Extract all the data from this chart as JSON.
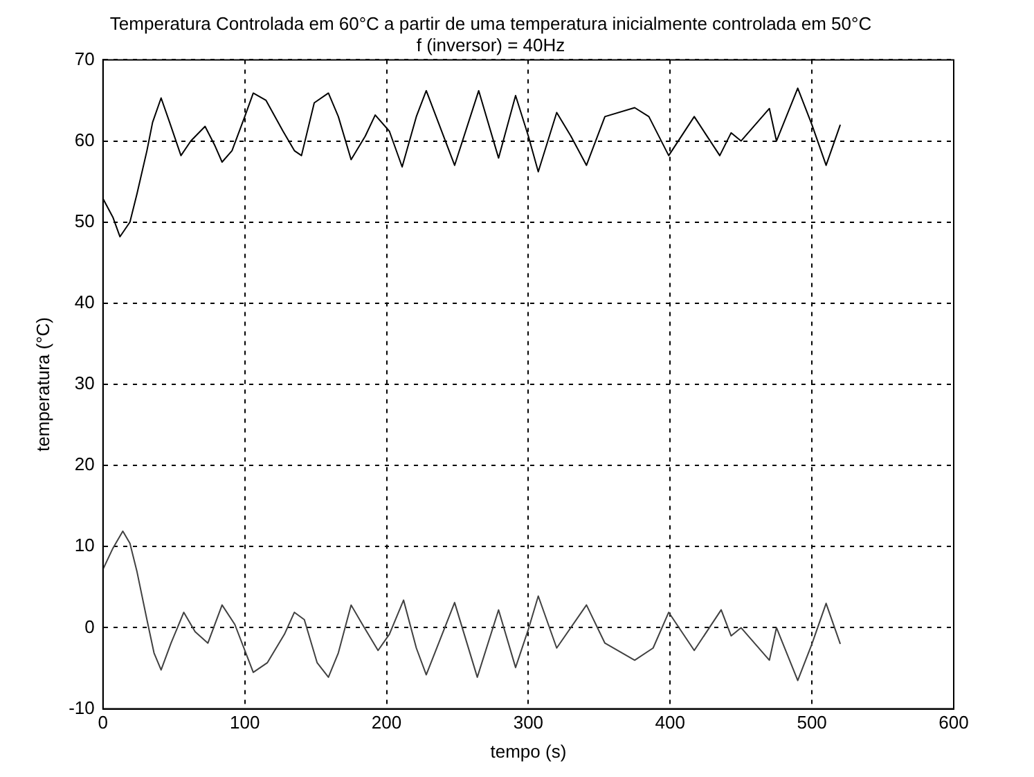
{
  "chart_data": {
    "type": "line",
    "title": "Temperatura Controlada em 60°C a partir de uma temperatura inicialmente controlada em 50°C",
    "subtitle": "f (inversor) = 40Hz",
    "xlabel": "tempo (s)",
    "ylabel": "temperatura (°C)",
    "xlim": [
      0,
      600
    ],
    "xticks": [
      0,
      100,
      200,
      300,
      400,
      500,
      600
    ],
    "ylim": [
      -10,
      70
    ],
    "yticks": [
      -10,
      0,
      10,
      20,
      30,
      40,
      50,
      60,
      70
    ],
    "grid": true,
    "legend": false,
    "marker": "none",
    "line_style": "solid",
    "series": [
      {
        "color": "#000000",
        "x": [
          0,
          7,
          12,
          19,
          24,
          31,
          35,
          41,
          47,
          55,
          62,
          72,
          79,
          84,
          91,
          100,
          106,
          115,
          127,
          135,
          140,
          149,
          159,
          166,
          175,
          185,
          192,
          202,
          211,
          221,
          228,
          248,
          265,
          279,
          291,
          300,
          307,
          320,
          330,
          341,
          354,
          375,
          385,
          399,
          417,
          435,
          443,
          450,
          470,
          475,
          490,
          500,
          510,
          520
        ],
        "values": [
          52.9,
          50.6,
          48.2,
          50,
          53.5,
          58.8,
          62.3,
          65.3,
          62.3,
          58.2,
          60,
          61.8,
          59.4,
          57.4,
          58.8,
          63,
          65.9,
          65,
          61.2,
          58.8,
          58.2,
          64.7,
          65.9,
          63,
          57.7,
          60.6,
          63.2,
          61.2,
          56.8,
          63,
          66.2,
          57,
          66.2,
          57.9,
          65.6,
          60.6,
          56.2,
          63.5,
          60.6,
          57,
          63,
          64.1,
          63,
          58.2,
          63,
          58.2,
          61,
          60,
          64,
          60,
          66.5,
          62,
          57,
          62
        ]
      },
      {
        "color": "#404040",
        "x": [
          0,
          7,
          14,
          19,
          24,
          31,
          36,
          41,
          48,
          57,
          65,
          74,
          84,
          93,
          106,
          116,
          128,
          135,
          142,
          151,
          159,
          166,
          175,
          183,
          194,
          202,
          212,
          221,
          228,
          248,
          264,
          279,
          291,
          300,
          307,
          320,
          341,
          354,
          375,
          388,
          399,
          417,
          436,
          443,
          450,
          470,
          475,
          490,
          500,
          510,
          520
        ],
        "values": [
          7.2,
          9.8,
          11.9,
          10.4,
          6.9,
          1,
          -3.1,
          -5.2,
          -1.9,
          1.9,
          -0.5,
          -1.9,
          2.8,
          0.4,
          -5.5,
          -4.3,
          -0.8,
          1.9,
          1,
          -4.3,
          -6.1,
          -3.1,
          2.8,
          0.4,
          -2.8,
          -0.8,
          3.4,
          -2.5,
          -5.8,
          3.1,
          -6.1,
          2.2,
          -4.9,
          -0.2,
          3.9,
          -2.5,
          2.8,
          -1.9,
          -4,
          -2.5,
          1.9,
          -2.8,
          2.2,
          -1,
          0,
          -4,
          0,
          -6.5,
          -2,
          3,
          -2
        ]
      }
    ]
  }
}
